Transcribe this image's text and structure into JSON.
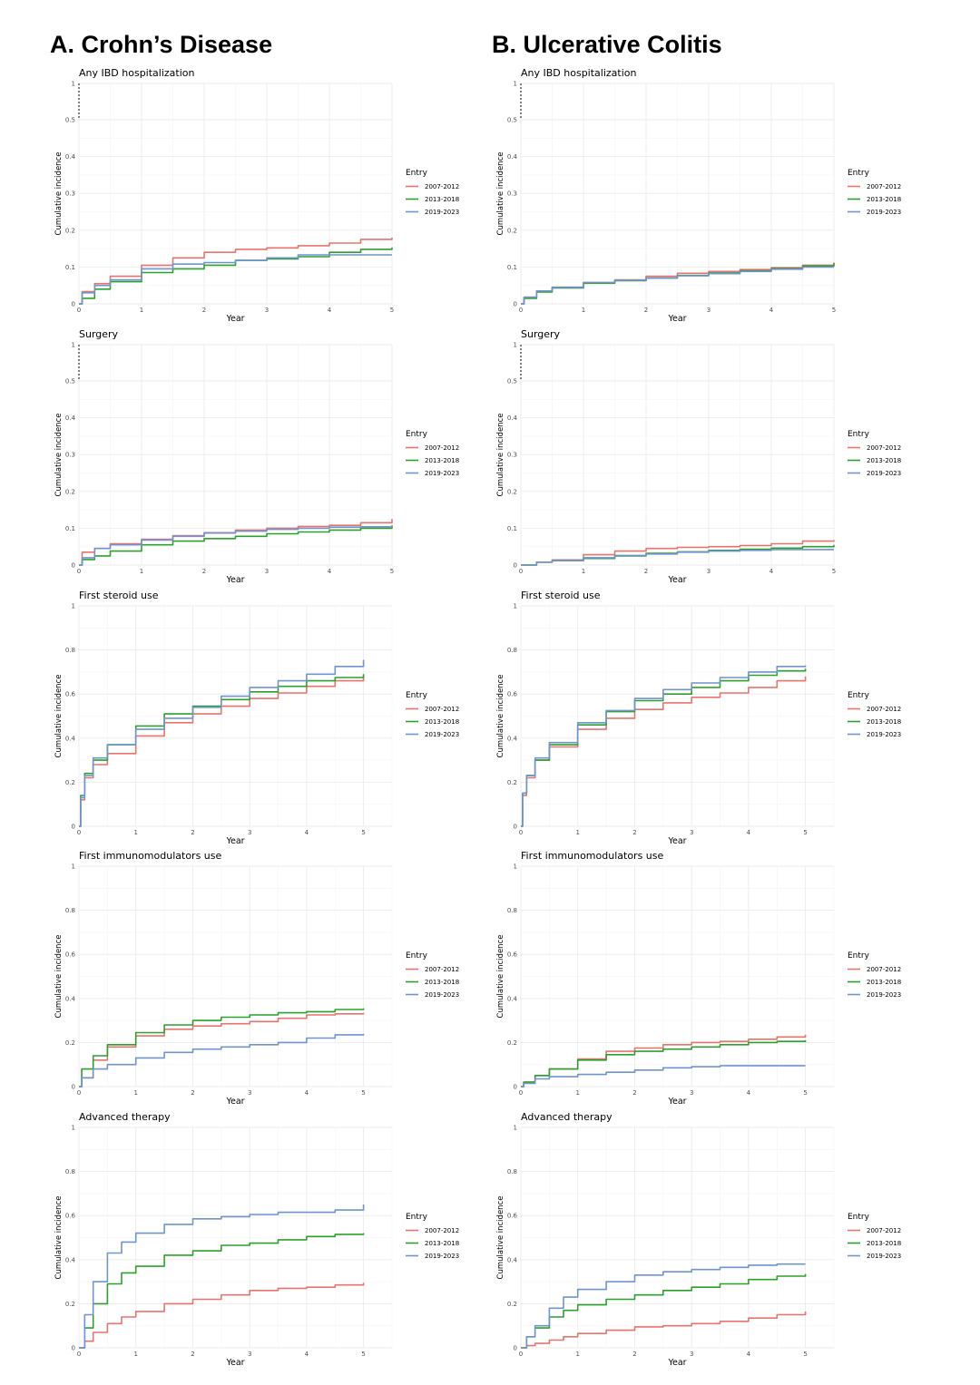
{
  "figure": {
    "columns": [
      {
        "id": "cd",
        "title": "A. Crohn’s Disease"
      },
      {
        "id": "uc",
        "title": "B. Ulcerative Colitis"
      }
    ],
    "colors": {
      "2007-2012": "#e8736c",
      "2013-2018": "#2ca02c",
      "2019-2023": "#6f94cf"
    }
  },
  "chart_data": [
    {
      "id": "cd-hosp",
      "column": "cd",
      "row": 0,
      "type": "line",
      "title": "Any IBD hospitalization",
      "xlabel": "Year",
      "ylabel": "Cumulative incidence",
      "xlim": [
        0,
        5
      ],
      "ylim": [
        0,
        1
      ],
      "yticks": [
        "0",
        "0.1",
        "0.2",
        "0.3",
        "0.4",
        "0.5",
        "1"
      ],
      "xticks": [
        "0",
        "1",
        "2",
        "3",
        "4",
        "5"
      ],
      "axis_break": true,
      "grid": true,
      "legend": {
        "title": "Entry",
        "position": "right"
      },
      "x": [
        0,
        0.05,
        0.25,
        0.5,
        1,
        1.5,
        2,
        2.5,
        3,
        3.5,
        4,
        4.5,
        5
      ],
      "series": [
        {
          "name": "2007-2012",
          "values": [
            0,
            0.033,
            0.055,
            0.075,
            0.105,
            0.125,
            0.14,
            0.148,
            0.152,
            0.158,
            0.165,
            0.175,
            0.18
          ]
        },
        {
          "name": "2013-2018",
          "values": [
            0,
            0.015,
            0.04,
            0.06,
            0.085,
            0.095,
            0.105,
            0.118,
            0.122,
            0.128,
            0.14,
            0.148,
            0.153
          ]
        },
        {
          "name": "2019-2023",
          "values": [
            0,
            0.03,
            0.05,
            0.065,
            0.095,
            0.108,
            0.112,
            0.118,
            0.125,
            0.133,
            0.133,
            0.133,
            0.133
          ]
        }
      ]
    },
    {
      "id": "uc-hosp",
      "column": "uc",
      "row": 0,
      "type": "line",
      "title": "Any IBD hospitalization",
      "xlabel": "Year",
      "ylabel": "Cumulative incidence",
      "xlim": [
        0,
        5
      ],
      "ylim": [
        0,
        1
      ],
      "yticks": [
        "0",
        "0.1",
        "0.2",
        "0.3",
        "0.4",
        "0.5",
        "1"
      ],
      "xticks": [
        "0",
        "1",
        "2",
        "3",
        "4",
        "5"
      ],
      "axis_break": true,
      "grid": true,
      "legend": {
        "title": "Entry",
        "position": "right"
      },
      "x": [
        0,
        0.05,
        0.25,
        0.5,
        1,
        1.5,
        2,
        2.5,
        3,
        3.5,
        4,
        4.5,
        5
      ],
      "series": [
        {
          "name": "2007-2012",
          "values": [
            0,
            0.018,
            0.035,
            0.045,
            0.058,
            0.065,
            0.075,
            0.083,
            0.088,
            0.093,
            0.098,
            0.105,
            0.112
          ]
        },
        {
          "name": "2013-2018",
          "values": [
            0,
            0.015,
            0.032,
            0.043,
            0.056,
            0.063,
            0.07,
            0.077,
            0.084,
            0.09,
            0.096,
            0.103,
            0.11
          ]
        },
        {
          "name": "2019-2023",
          "values": [
            0,
            0.018,
            0.035,
            0.045,
            0.058,
            0.064,
            0.07,
            0.076,
            0.082,
            0.088,
            0.094,
            0.1,
            0.1
          ]
        }
      ]
    },
    {
      "id": "cd-surg",
      "column": "cd",
      "row": 1,
      "type": "line",
      "title": "Surgery",
      "xlabel": "Year",
      "ylabel": "Cumulative incidence",
      "xlim": [
        0,
        5
      ],
      "ylim": [
        0,
        1
      ],
      "yticks": [
        "0",
        "0.1",
        "0.2",
        "0.3",
        "0.4",
        "0.5",
        "1"
      ],
      "xticks": [
        "0",
        "1",
        "2",
        "3",
        "4",
        "5"
      ],
      "axis_break": true,
      "grid": true,
      "legend": {
        "title": "Entry",
        "position": "right"
      },
      "x": [
        0,
        0.05,
        0.25,
        0.5,
        1,
        1.5,
        2,
        2.5,
        3,
        3.5,
        4,
        4.5,
        5
      ],
      "series": [
        {
          "name": "2007-2012",
          "values": [
            0,
            0.035,
            0.045,
            0.058,
            0.07,
            0.08,
            0.088,
            0.095,
            0.1,
            0.105,
            0.108,
            0.115,
            0.125
          ]
        },
        {
          "name": "2013-2018",
          "values": [
            0,
            0.015,
            0.025,
            0.038,
            0.055,
            0.065,
            0.072,
            0.078,
            0.085,
            0.09,
            0.095,
            0.1,
            0.108
          ]
        },
        {
          "name": "2019-2023",
          "values": [
            0,
            0.02,
            0.045,
            0.055,
            0.068,
            0.078,
            0.087,
            0.092,
            0.097,
            0.1,
            0.103,
            0.104,
            0.104
          ]
        }
      ]
    },
    {
      "id": "uc-surg",
      "column": "uc",
      "row": 1,
      "type": "line",
      "title": "Surgery",
      "xlabel": "Year",
      "ylabel": "Cumulative incidence",
      "xlim": [
        0,
        5
      ],
      "ylim": [
        0,
        1
      ],
      "yticks": [
        "0",
        "0.1",
        "0.2",
        "0.3",
        "0.4",
        "0.5",
        "1"
      ],
      "xticks": [
        "0",
        "1",
        "2",
        "3",
        "4",
        "5"
      ],
      "axis_break": true,
      "grid": true,
      "legend": {
        "title": "Entry",
        "position": "right"
      },
      "x": [
        0,
        0.25,
        0.5,
        1,
        1.5,
        2,
        2.5,
        3,
        3.5,
        4,
        4.5,
        5
      ],
      "series": [
        {
          "name": "2007-2012",
          "values": [
            0,
            0.008,
            0.014,
            0.028,
            0.038,
            0.045,
            0.048,
            0.05,
            0.053,
            0.058,
            0.065,
            0.068
          ]
        },
        {
          "name": "2013-2018",
          "values": [
            0,
            0.008,
            0.012,
            0.018,
            0.025,
            0.032,
            0.036,
            0.04,
            0.043,
            0.046,
            0.05,
            0.055
          ]
        },
        {
          "name": "2019-2023",
          "values": [
            0,
            0.008,
            0.012,
            0.02,
            0.026,
            0.03,
            0.035,
            0.038,
            0.04,
            0.042,
            0.042,
            0.042
          ]
        }
      ]
    },
    {
      "id": "cd-steroid",
      "column": "cd",
      "row": 2,
      "type": "line",
      "title": "First steroid use",
      "xlabel": "Year",
      "ylabel": "Cumulative incidence",
      "xlim": [
        0,
        5.5
      ],
      "ylim": [
        0,
        1
      ],
      "yticks": [
        "0",
        "0.2",
        "0.4",
        "0.6",
        "0.8",
        "1"
      ],
      "xticks": [
        "0",
        "1",
        "2",
        "3",
        "4",
        "5"
      ],
      "axis_break": false,
      "grid": true,
      "legend": {
        "title": "Entry",
        "position": "right"
      },
      "x": [
        0,
        0.03,
        0.1,
        0.25,
        0.5,
        1,
        1.5,
        2,
        2.5,
        3,
        3.5,
        4,
        4.5,
        5
      ],
      "series": [
        {
          "name": "2007-2012",
          "values": [
            0,
            0.12,
            0.22,
            0.28,
            0.33,
            0.41,
            0.47,
            0.51,
            0.545,
            0.58,
            0.605,
            0.635,
            0.66,
            0.685
          ]
        },
        {
          "name": "2013-2018",
          "values": [
            0,
            0.14,
            0.24,
            0.3,
            0.37,
            0.455,
            0.51,
            0.545,
            0.575,
            0.61,
            0.635,
            0.66,
            0.675,
            0.69
          ]
        },
        {
          "name": "2019-2023",
          "values": [
            0,
            0.13,
            0.23,
            0.31,
            0.37,
            0.44,
            0.49,
            0.54,
            0.59,
            0.63,
            0.66,
            0.69,
            0.725,
            0.755
          ]
        }
      ]
    },
    {
      "id": "uc-steroid",
      "column": "uc",
      "row": 2,
      "type": "line",
      "title": "First steroid use",
      "xlabel": "Year",
      "ylabel": "Cumulative incidence",
      "xlim": [
        0,
        5.5
      ],
      "ylim": [
        0,
        1
      ],
      "yticks": [
        "0",
        "0.2",
        "0.4",
        "0.6",
        "0.8",
        "1"
      ],
      "xticks": [
        "0",
        "1",
        "2",
        "3",
        "4",
        "5"
      ],
      "axis_break": false,
      "grid": true,
      "legend": {
        "title": "Entry",
        "position": "right"
      },
      "x": [
        0,
        0.03,
        0.1,
        0.25,
        0.5,
        1,
        1.5,
        2,
        2.5,
        3,
        3.5,
        4,
        4.5,
        5
      ],
      "series": [
        {
          "name": "2007-2012",
          "values": [
            0,
            0.14,
            0.22,
            0.3,
            0.36,
            0.44,
            0.49,
            0.53,
            0.56,
            0.585,
            0.605,
            0.63,
            0.66,
            0.68
          ]
        },
        {
          "name": "2013-2018",
          "values": [
            0,
            0.15,
            0.23,
            0.3,
            0.37,
            0.46,
            0.52,
            0.57,
            0.6,
            0.63,
            0.66,
            0.685,
            0.705,
            0.715
          ]
        },
        {
          "name": "2019-2023",
          "values": [
            0,
            0.15,
            0.23,
            0.31,
            0.38,
            0.47,
            0.525,
            0.58,
            0.62,
            0.65,
            0.675,
            0.7,
            0.725,
            0.73
          ]
        }
      ]
    },
    {
      "id": "cd-immuno",
      "column": "cd",
      "row": 3,
      "type": "line",
      "title": "First immunomodulators use",
      "xlabel": "Year",
      "ylabel": "Cumulative incidence",
      "xlim": [
        0,
        5.5
      ],
      "ylim": [
        0,
        1
      ],
      "yticks": [
        "0",
        "0.2",
        "0.4",
        "0.6",
        "0.8",
        "1"
      ],
      "xticks": [
        "0",
        "1",
        "2",
        "3",
        "4",
        "5"
      ],
      "axis_break": false,
      "grid": true,
      "legend": {
        "title": "Entry",
        "position": "right"
      },
      "x": [
        0,
        0.05,
        0.25,
        0.5,
        1,
        1.5,
        2,
        2.5,
        3,
        3.5,
        4,
        4.5,
        5
      ],
      "series": [
        {
          "name": "2007-2012",
          "values": [
            0,
            0.04,
            0.12,
            0.18,
            0.23,
            0.26,
            0.275,
            0.285,
            0.295,
            0.31,
            0.325,
            0.33,
            0.335
          ]
        },
        {
          "name": "2013-2018",
          "values": [
            0,
            0.08,
            0.14,
            0.19,
            0.245,
            0.28,
            0.3,
            0.315,
            0.325,
            0.335,
            0.34,
            0.35,
            0.355
          ]
        },
        {
          "name": "2019-2023",
          "values": [
            0,
            0.04,
            0.08,
            0.1,
            0.13,
            0.155,
            0.17,
            0.18,
            0.19,
            0.2,
            0.22,
            0.235,
            0.24
          ]
        }
      ]
    },
    {
      "id": "uc-immuno",
      "column": "uc",
      "row": 3,
      "type": "line",
      "title": "First immunomodulators use",
      "xlabel": "Year",
      "ylabel": "Cumulative incidence",
      "xlim": [
        0,
        5.5
      ],
      "ylim": [
        0,
        1
      ],
      "yticks": [
        "0",
        "0.2",
        "0.4",
        "0.6",
        "0.8",
        "1"
      ],
      "xticks": [
        "0",
        "1",
        "2",
        "3",
        "4",
        "5"
      ],
      "axis_break": false,
      "grid": true,
      "legend": {
        "title": "Entry",
        "position": "right"
      },
      "x": [
        0,
        0.05,
        0.25,
        0.5,
        1,
        1.5,
        2,
        2.5,
        3,
        3.5,
        4,
        4.5,
        5
      ],
      "series": [
        {
          "name": "2007-2012",
          "values": [
            0,
            0.02,
            0.05,
            0.08,
            0.125,
            0.16,
            0.175,
            0.19,
            0.2,
            0.205,
            0.215,
            0.225,
            0.235
          ]
        },
        {
          "name": "2013-2018",
          "values": [
            0,
            0.02,
            0.05,
            0.08,
            0.12,
            0.145,
            0.16,
            0.17,
            0.18,
            0.19,
            0.2,
            0.205,
            0.21
          ]
        },
        {
          "name": "2019-2023",
          "values": [
            0,
            0.015,
            0.035,
            0.045,
            0.055,
            0.065,
            0.075,
            0.085,
            0.09,
            0.095,
            0.095,
            0.095,
            0.095
          ]
        }
      ]
    },
    {
      "id": "cd-adv",
      "column": "cd",
      "row": 4,
      "type": "line",
      "title": "Advanced therapy",
      "xlabel": "Year",
      "ylabel": "Cumulative incidence",
      "xlim": [
        0,
        5.5
      ],
      "ylim": [
        0,
        1
      ],
      "yticks": [
        "0",
        "0.2",
        "0.4",
        "0.6",
        "0.8",
        "1"
      ],
      "xticks": [
        "0",
        "1",
        "2",
        "3",
        "4",
        "5"
      ],
      "axis_break": false,
      "grid": true,
      "legend": {
        "title": "Entry",
        "position": "right"
      },
      "x": [
        0,
        0.1,
        0.25,
        0.5,
        0.75,
        1,
        1.5,
        2,
        2.5,
        3,
        3.5,
        4,
        4.5,
        5
      ],
      "series": [
        {
          "name": "2007-2012",
          "values": [
            0,
            0.03,
            0.07,
            0.11,
            0.14,
            0.165,
            0.2,
            0.22,
            0.24,
            0.26,
            0.27,
            0.275,
            0.285,
            0.295
          ]
        },
        {
          "name": "2013-2018",
          "values": [
            0,
            0.09,
            0.2,
            0.29,
            0.34,
            0.37,
            0.42,
            0.44,
            0.465,
            0.475,
            0.49,
            0.505,
            0.515,
            0.52
          ]
        },
        {
          "name": "2019-2023",
          "values": [
            0,
            0.15,
            0.3,
            0.43,
            0.48,
            0.52,
            0.56,
            0.585,
            0.595,
            0.605,
            0.615,
            0.615,
            0.625,
            0.65
          ]
        }
      ]
    },
    {
      "id": "uc-adv",
      "column": "uc",
      "row": 4,
      "type": "line",
      "title": "Advanced therapy",
      "xlabel": "Year",
      "ylabel": "Cumulative incidence",
      "xlim": [
        0,
        5.5
      ],
      "ylim": [
        0,
        1
      ],
      "yticks": [
        "0",
        "0.2",
        "0.4",
        "0.6",
        "0.8",
        "1"
      ],
      "xticks": [
        "0",
        "1",
        "2",
        "3",
        "4",
        "5"
      ],
      "axis_break": false,
      "grid": true,
      "legend": {
        "title": "Entry",
        "position": "right"
      },
      "x": [
        0,
        0.1,
        0.25,
        0.5,
        0.75,
        1,
        1.5,
        2,
        2.5,
        3,
        3.5,
        4,
        4.5,
        5
      ],
      "series": [
        {
          "name": "2007-2012",
          "values": [
            0,
            0.01,
            0.02,
            0.035,
            0.05,
            0.065,
            0.08,
            0.095,
            0.1,
            0.11,
            0.12,
            0.135,
            0.15,
            0.165
          ]
        },
        {
          "name": "2013-2018",
          "values": [
            0,
            0.05,
            0.09,
            0.14,
            0.17,
            0.195,
            0.22,
            0.24,
            0.26,
            0.275,
            0.29,
            0.31,
            0.325,
            0.335
          ]
        },
        {
          "name": "2019-2023",
          "values": [
            0,
            0.05,
            0.1,
            0.18,
            0.23,
            0.265,
            0.3,
            0.33,
            0.345,
            0.355,
            0.365,
            0.375,
            0.38,
            0.38
          ]
        }
      ]
    }
  ]
}
